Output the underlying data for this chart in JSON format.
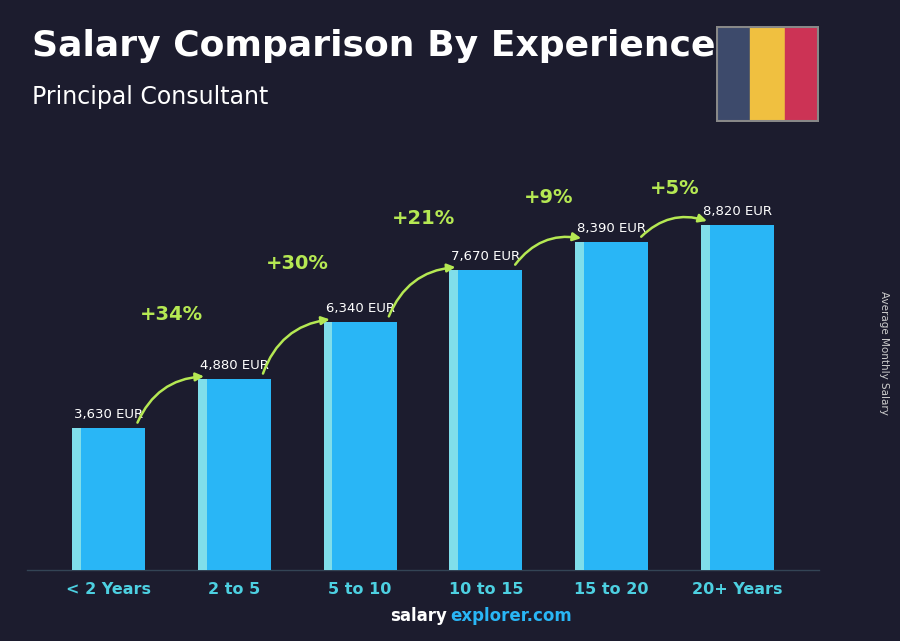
{
  "title": "Salary Comparison By Experience",
  "subtitle": "Principal Consultant",
  "ylabel": "Average Monthly Salary",
  "watermark_left": "salary",
  "watermark_right": "explorer.com",
  "categories": [
    "< 2 Years",
    "2 to 5",
    "5 to 10",
    "10 to 15",
    "15 to 20",
    "20+ Years"
  ],
  "values": [
    3630,
    4880,
    6340,
    7670,
    8390,
    8820
  ],
  "value_labels": [
    "3,630 EUR",
    "4,880 EUR",
    "6,340 EUR",
    "7,670 EUR",
    "8,390 EUR",
    "8,820 EUR"
  ],
  "pct_changes": [
    "+34%",
    "+30%",
    "+21%",
    "+9%",
    "+5%"
  ],
  "bar_color_main": "#29b6f6",
  "bar_color_highlight": "#80deea",
  "bg_color": "#1c1c2e",
  "title_color": "#ffffff",
  "subtitle_color": "#ffffff",
  "xtick_color": "#4dd0e1",
  "value_label_color": "#ffffff",
  "pct_color": "#b5e853",
  "arrow_color": "#b5e853",
  "watermark_left_color": "#ffffff",
  "watermark_right_color": "#29b6f6",
  "ylabel_color": "#cccccc",
  "flag_colors": [
    "#3d4a6b",
    "#f0c040",
    "#cc3355"
  ],
  "ylim_max": 10800,
  "title_fontsize": 26,
  "subtitle_fontsize": 17,
  "bar_width": 0.58,
  "arc_heights": [
    1300,
    1150,
    980,
    780,
    600
  ]
}
